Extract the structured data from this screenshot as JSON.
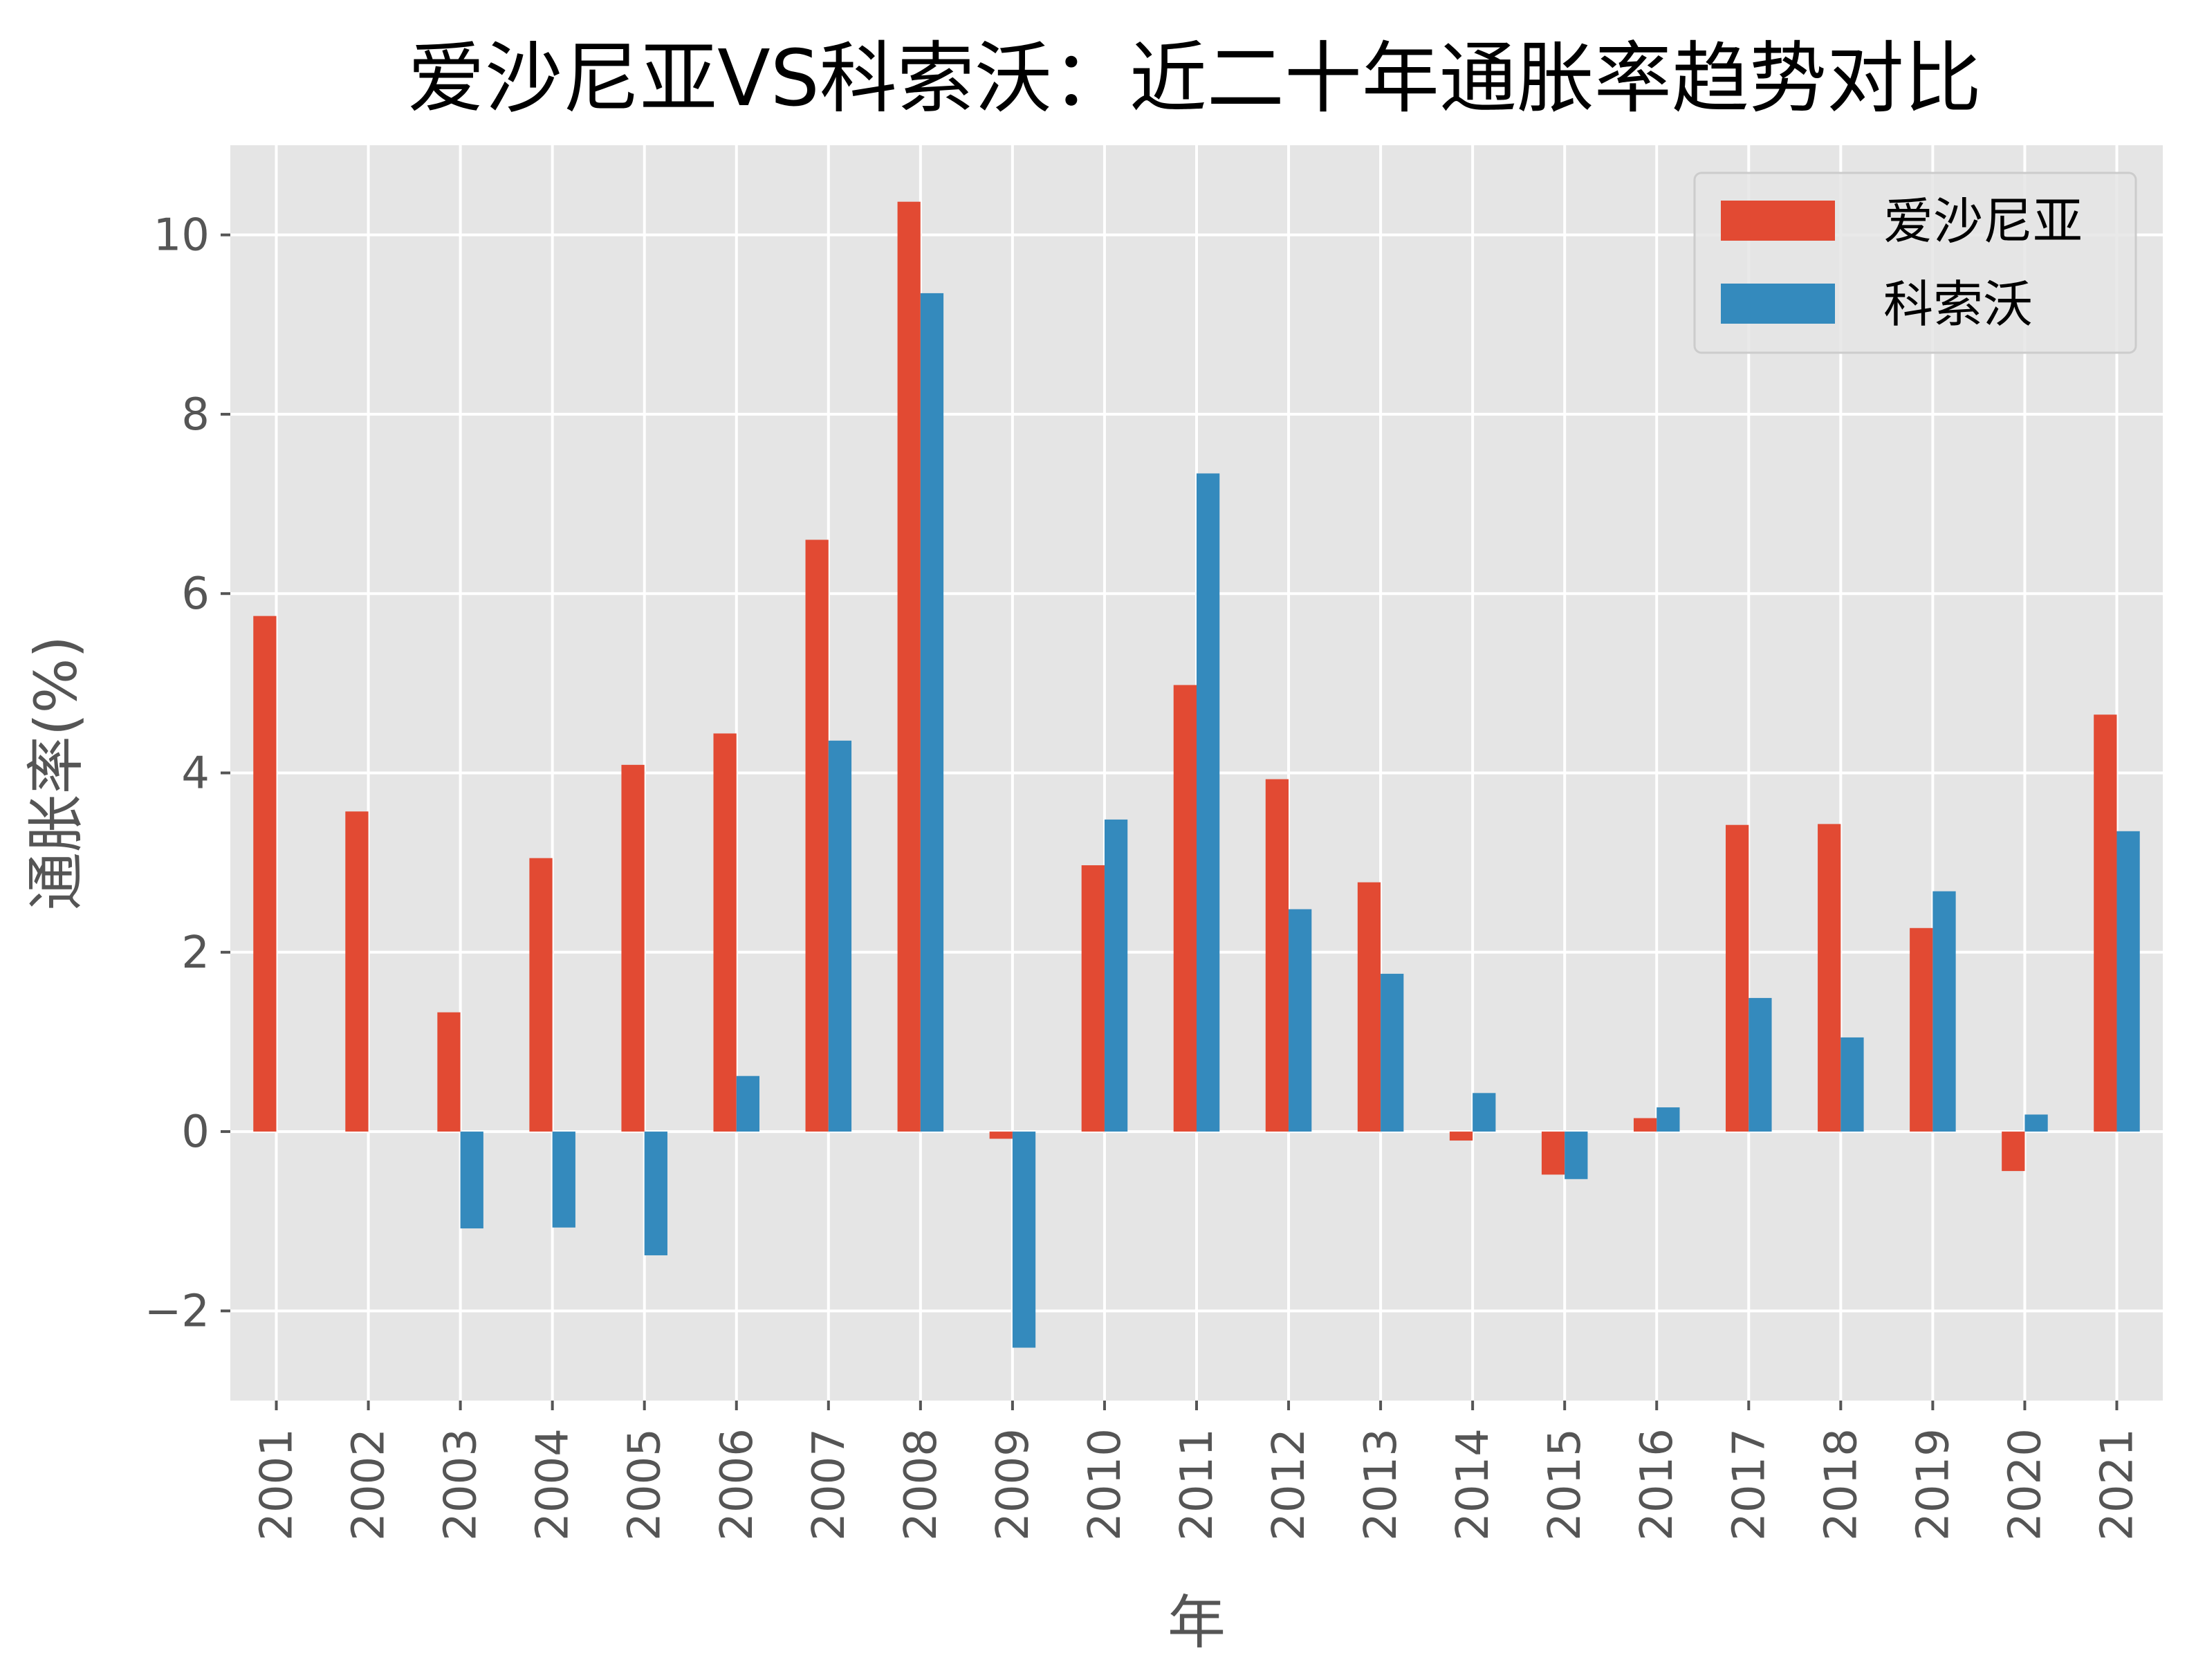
{
  "chart_data": {
    "type": "bar",
    "title": "爱沙尼亚VS科索沃：近二十年通胀率趋势对比",
    "xlabel": "年",
    "ylabel": "通胀率(%)",
    "ylim": [
      -3.0,
      11.0
    ],
    "yticks": [
      -2,
      0,
      2,
      4,
      6,
      8,
      10
    ],
    "ytick_labels": [
      "−2",
      "0",
      "2",
      "4",
      "6",
      "8",
      "10"
    ],
    "grid": true,
    "legend_position": "top-right",
    "categories": [
      "2001",
      "2002",
      "2003",
      "2004",
      "2005",
      "2006",
      "2007",
      "2008",
      "2009",
      "2010",
      "2011",
      "2012",
      "2013",
      "2014",
      "2015",
      "2016",
      "2017",
      "2018",
      "2019",
      "2020",
      "2021"
    ],
    "series": [
      {
        "name": "爱沙尼亚",
        "color": "#E24A33",
        "values": [
          5.75,
          3.57,
          1.33,
          3.05,
          4.09,
          4.44,
          6.6,
          10.37,
          -0.08,
          2.97,
          4.98,
          3.93,
          2.78,
          -0.1,
          -0.48,
          0.15,
          3.42,
          3.43,
          2.27,
          -0.44,
          4.65
        ]
      },
      {
        "name": "科索沃",
        "color": "#348ABD",
        "values": [
          0,
          0,
          -1.08,
          -1.07,
          -1.38,
          0.62,
          4.36,
          9.35,
          -2.41,
          3.48,
          7.34,
          2.48,
          1.76,
          0.43,
          -0.53,
          0.27,
          1.49,
          1.05,
          2.68,
          0.19,
          3.35
        ]
      }
    ]
  }
}
